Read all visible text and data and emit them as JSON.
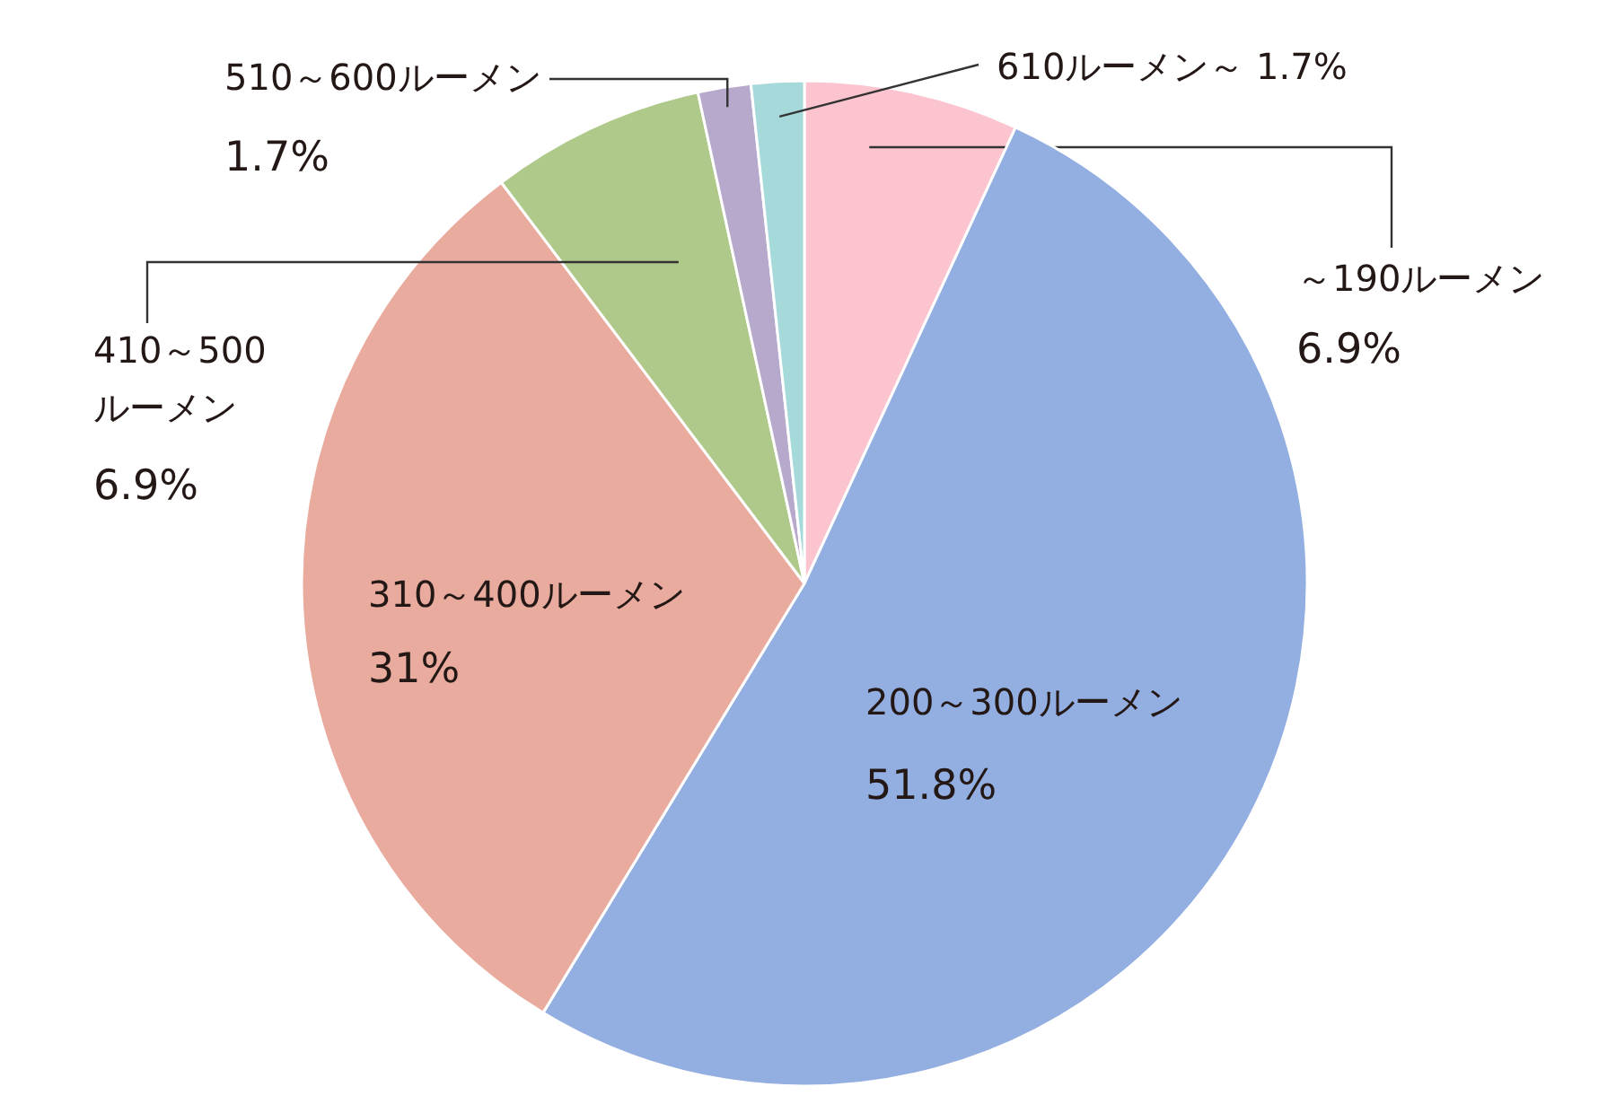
{
  "chart_data": {
    "type": "pie",
    "categories": [
      "～190ルーメン",
      "200～300ルーメン",
      "310～400ルーメン",
      "410～500ルーメン",
      "510～600ルーメン",
      "610ルーメン～"
    ],
    "values": [
      6.9,
      51.8,
      31,
      6.9,
      1.7,
      1.7
    ],
    "value_labels": [
      "6.9%",
      "51.8%",
      "31%",
      "6.9%",
      "1.7%",
      "1.7%"
    ],
    "colors": [
      "#fbc4cf",
      "#93aee0",
      "#eaab9f",
      "#afc98b",
      "#b6a9cc",
      "#a6d9d9"
    ]
  }
}
